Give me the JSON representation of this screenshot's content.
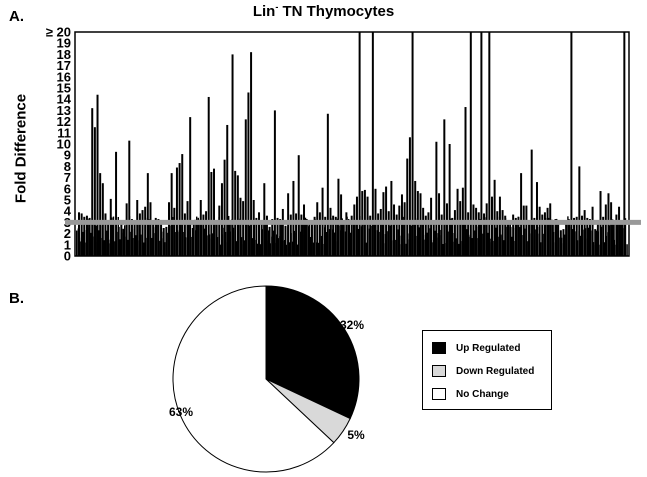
{
  "figure": {
    "panel_a_label": "A.",
    "panel_b_label": "B.",
    "title_main": "Lin",
    "title_sup": "-",
    "title_rest": " TN Thymocytes",
    "ylabel": "Fold Difference"
  },
  "chart_data": [
    {
      "type": "bar",
      "title": "Lin- TN Thymocytes",
      "ylabel": "Fold Difference",
      "ylim": [
        0,
        20
      ],
      "yticks": [
        "0",
        "1",
        "2",
        "3",
        "4",
        "5",
        "6",
        "7",
        "8",
        "9",
        "10",
        "11",
        "12",
        "13",
        "14",
        "15",
        "16",
        "17",
        "18",
        "19",
        "≥ 20"
      ],
      "threshold": 3,
      "threshold_color": "#999999",
      "bar_color": "#000000",
      "values": [
        3.9,
        3.8,
        3.5,
        3.6,
        3.4,
        13.2,
        11.5,
        14.4,
        7.4,
        6.5,
        3.8,
        3.2,
        5.1,
        2.8,
        9.3,
        2.6,
        3.1,
        2.4,
        4.7,
        10.3,
        3.3,
        2.9,
        5.0,
        3.8,
        4.1,
        4.4,
        7.4,
        4.8,
        3.2,
        3.4,
        3.3,
        3.1,
        2.5,
        2.6,
        4.8,
        7.4,
        4.3,
        7.9,
        8.3,
        9.1,
        3.8,
        4.9,
        12.4,
        2.5,
        2.3,
        2.8,
        5.0,
        3.7,
        4.0,
        14.2,
        7.5,
        7.8,
        3.2,
        4.5,
        6.5,
        8.6,
        11.7,
        3.1,
        18.0,
        7.6,
        7.2,
        5.2,
        4.9,
        12.2,
        14.6,
        18.2,
        5.0,
        3.4,
        3.9,
        3.0,
        6.5,
        3.6,
        2.6,
        3.3,
        13.0,
        3.4,
        3.3,
        4.2,
        2.7,
        5.6,
        3.7,
        6.7,
        3.8,
        9.0,
        3.7,
        4.6,
        3.3,
        3.0,
        2.9,
        3.5,
        4.8,
        3.9,
        6.1,
        3.5,
        12.7,
        4.3,
        3.6,
        3.5,
        6.9,
        5.5,
        3.2,
        3.9,
        3.1,
        3.6,
        4.6,
        5.3,
        20.0,
        5.8,
        5.9,
        5.3,
        3.6,
        20.0,
        6.0,
        3.8,
        4.2,
        5.7,
        6.2,
        4.0,
        6.7,
        4.6,
        3.7,
        4.5,
        5.5,
        4.8,
        8.7,
        10.6,
        20.0,
        6.7,
        5.8,
        5.6,
        4.3,
        3.6,
        3.9,
        5.2,
        3.2,
        10.2,
        5.6,
        3.7,
        12.2,
        4.7,
        10.0,
        3.4,
        4.1,
        6.0,
        4.9,
        6.1,
        13.3,
        3.9,
        20.0,
        4.6,
        4.3,
        3.9,
        20.0,
        3.8,
        4.7,
        20.0,
        5.3,
        6.8,
        4.0,
        5.3,
        4.1,
        3.6,
        3.0,
        2.6,
        3.7,
        3.4,
        3.5,
        7.4,
        4.5,
        4.5,
        3.1,
        9.5,
        3.4,
        6.6,
        4.4,
        3.7,
        3.9,
        4.3,
        4.7,
        2.8,
        3.3,
        3.2,
        2.3,
        2.4,
        3.0,
        3.3,
        20.0,
        3.4,
        3.5,
        8.0,
        3.6,
        4.1,
        3.4,
        3.3,
        4.4,
        2.4,
        3.2,
        5.8,
        3.5,
        4.6,
        5.6,
        4.8,
        3.1,
        3.7,
        4.4,
        3.2,
        20.0
      ]
    },
    {
      "type": "pie",
      "slices": [
        {
          "label": "Up Regulated",
          "value": 32,
          "pct_label": "32%",
          "color": "#000000"
        },
        {
          "label": "Down Regulated",
          "value": 5,
          "pct_label": "5%",
          "color": "#d9d9d9"
        },
        {
          "label": "No Change",
          "value": 63,
          "pct_label": "63%",
          "color": "#ffffff"
        }
      ],
      "legend_position": "right"
    }
  ]
}
